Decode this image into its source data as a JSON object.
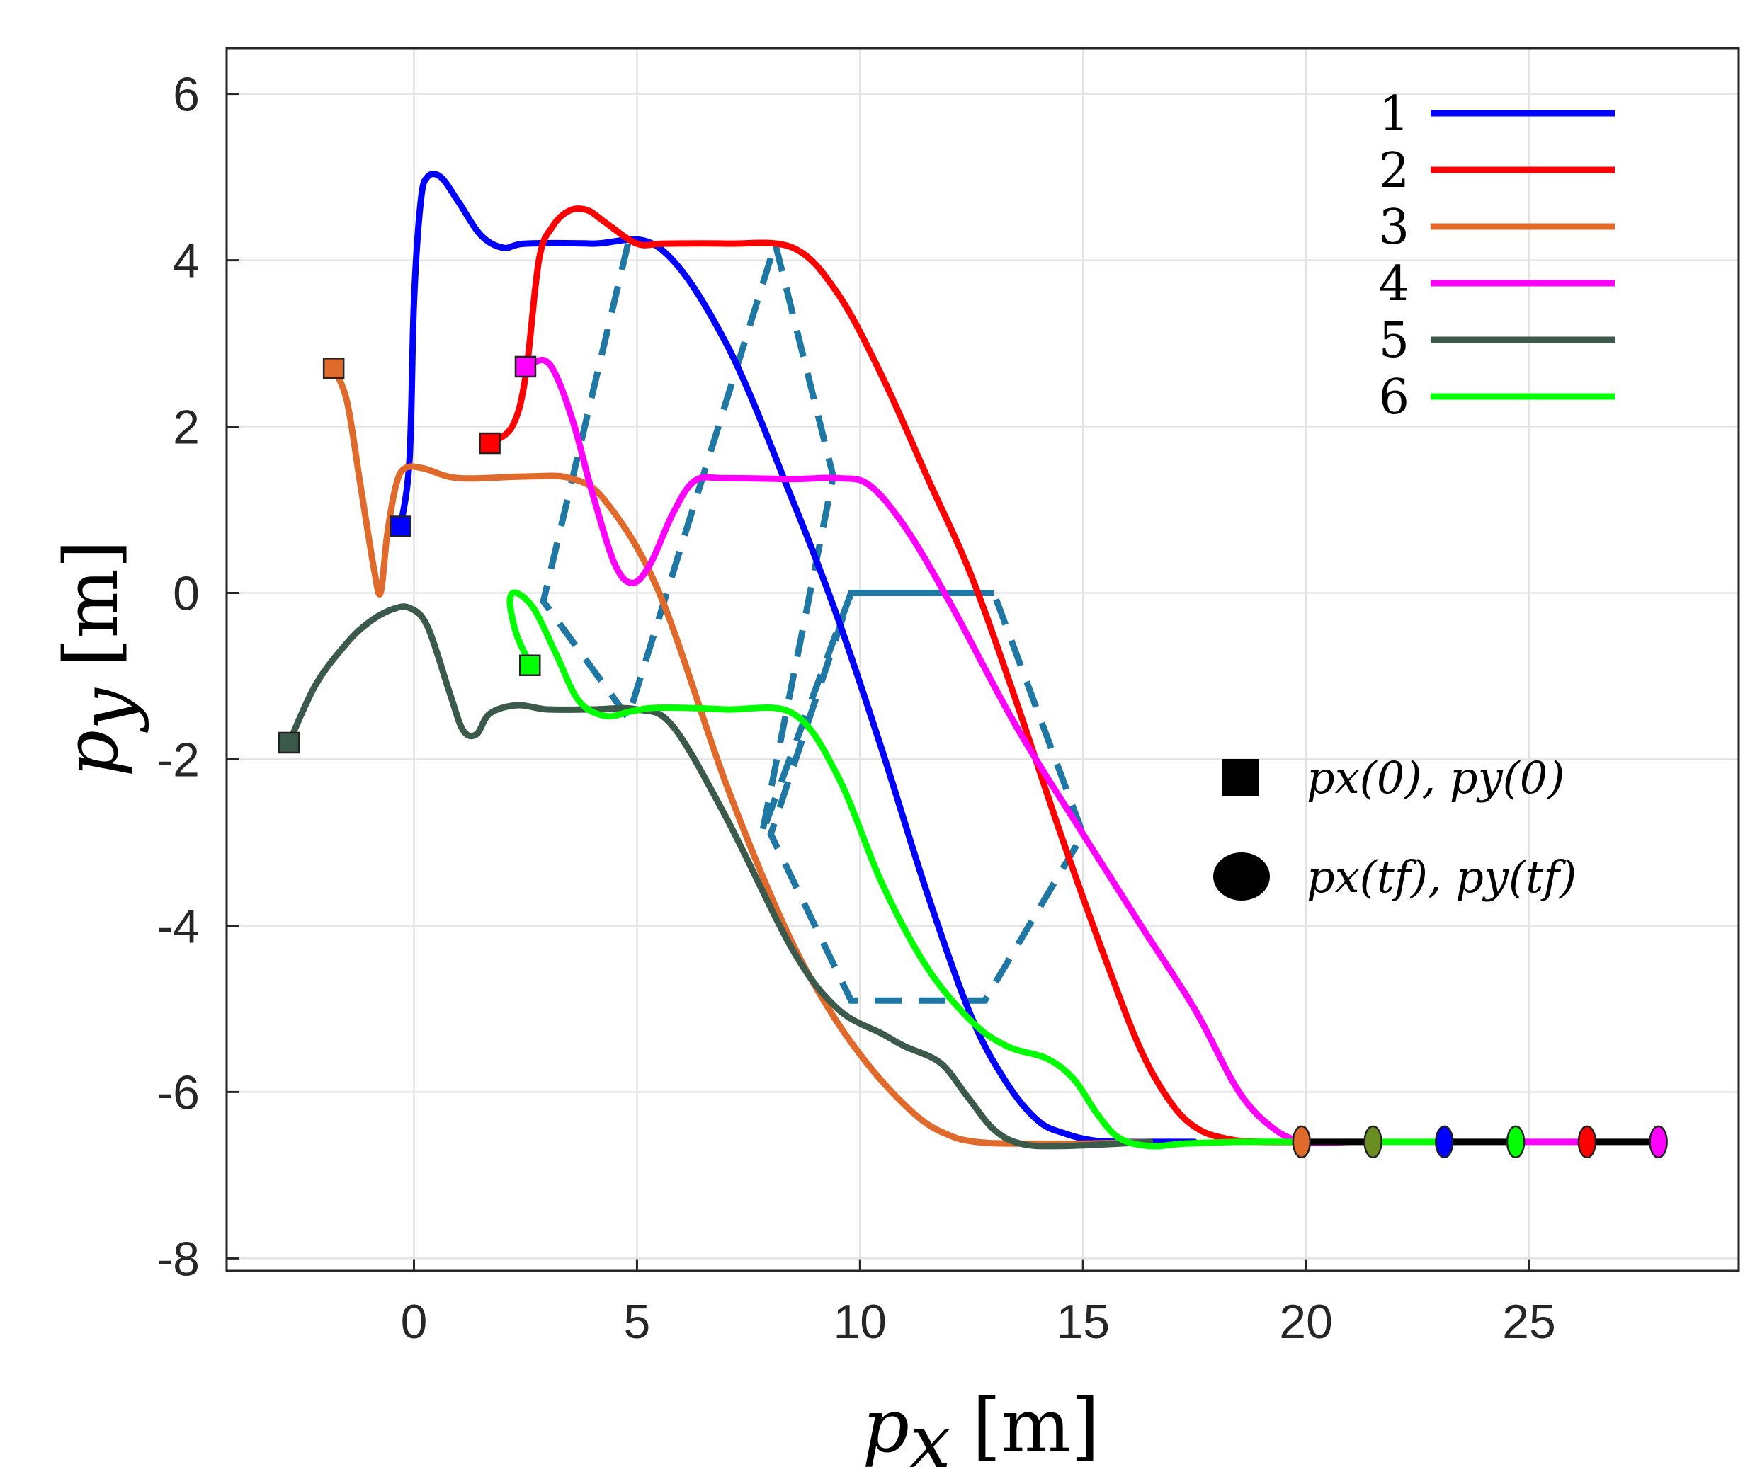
{
  "chart_data": {
    "type": "line",
    "xlabel_var": "p",
    "xlabel_sub": "x",
    "xlabel_unit": "[m]",
    "ylabel_var": "p",
    "ylabel_sub": "y",
    "ylabel_unit": "[m]",
    "xlim": [
      -4.2,
      29.7
    ],
    "ylim": [
      -8.15,
      6.55
    ],
    "x_ticks": [
      0,
      5,
      10,
      15,
      20,
      25
    ],
    "y_ticks": [
      -8,
      -6,
      -4,
      -2,
      0,
      2,
      4,
      6
    ],
    "x_tick_labels": [
      "0",
      "5",
      "10",
      "15",
      "20",
      "25"
    ],
    "y_tick_labels": [
      "-8",
      "-6",
      "-4",
      "-2",
      "0",
      "2",
      "4",
      "6"
    ],
    "grid": true,
    "legend_position": "top-right",
    "marker_legend": [
      {
        "symbol": "square",
        "label": "px(0), py(0)"
      },
      {
        "symbol": "circle",
        "label": "px(tf), py(tf)"
      }
    ],
    "series": [
      {
        "name": "1",
        "color": "#0000ff",
        "x": [
          -0.3,
          -0.1,
          0.0,
          0.15,
          0.3,
          0.6,
          1.0,
          1.5,
          2.0,
          2.5,
          4.0,
          5.5,
          7.0,
          8.5,
          9.5,
          10.5,
          11.5,
          12.5,
          13.3,
          14.0,
          14.6,
          15.2,
          15.8,
          16.5,
          17.5
        ],
        "y": [
          0.8,
          1.6,
          3.5,
          4.7,
          5.0,
          5.0,
          4.7,
          4.3,
          4.15,
          4.2,
          4.2,
          4.15,
          3.0,
          1.1,
          -0.3,
          -1.9,
          -3.6,
          -5.1,
          -5.9,
          -6.35,
          -6.5,
          -6.58,
          -6.6,
          -6.6,
          -6.6
        ]
      },
      {
        "name": "2",
        "color": "#ff0000",
        "x": [
          1.7,
          2.2,
          2.5,
          2.8,
          3.1,
          3.5,
          3.9,
          4.3,
          5.0,
          5.6,
          7.0,
          8.5,
          9.5,
          10.5,
          11.5,
          12.5,
          13.5,
          14.5,
          15.5,
          16.3,
          17.0,
          17.6,
          18.3,
          19.0,
          20.0
        ],
        "y": [
          1.8,
          2.0,
          2.6,
          4.0,
          4.4,
          4.6,
          4.6,
          4.45,
          4.2,
          4.2,
          4.2,
          4.15,
          3.6,
          2.6,
          1.4,
          0.2,
          -1.3,
          -2.9,
          -4.4,
          -5.5,
          -6.15,
          -6.45,
          -6.57,
          -6.6,
          -6.6
        ]
      },
      {
        "name": "3",
        "color": "#e06a2c",
        "x": [
          -1.8,
          -1.5,
          -1.2,
          -0.9,
          -0.75,
          -0.6,
          -0.4,
          -0.2,
          0.2,
          1.0,
          2.5,
          3.5,
          4.3,
          5.5,
          7.0,
          8.3,
          9.3,
          10.3,
          11.3,
          12.0,
          12.6,
          13.5,
          15.0,
          16.5
        ],
        "y": [
          2.7,
          2.3,
          1.3,
          0.3,
          0.0,
          0.7,
          1.3,
          1.5,
          1.5,
          1.38,
          1.4,
          1.38,
          1.1,
          0.0,
          -2.3,
          -4.0,
          -5.0,
          -5.75,
          -6.3,
          -6.52,
          -6.6,
          -6.62,
          -6.62,
          -6.6
        ]
      },
      {
        "name": "4",
        "color": "#ff00ff",
        "x": [
          2.5,
          2.9,
          3.2,
          3.6,
          4.0,
          4.5,
          4.9,
          5.3,
          5.8,
          6.3,
          7.0,
          8.5,
          9.5,
          10.2,
          11.0,
          12.0,
          13.5,
          15.0,
          16.3,
          17.5,
          18.5,
          19.3,
          20.0,
          21.0
        ],
        "y": [
          2.7,
          2.8,
          2.6,
          2.0,
          1.2,
          0.35,
          0.12,
          0.35,
          0.95,
          1.35,
          1.38,
          1.37,
          1.38,
          1.3,
          0.8,
          -0.1,
          -1.6,
          -2.9,
          -4.0,
          -5.0,
          -6.0,
          -6.45,
          -6.6,
          -6.6
        ]
      },
      {
        "name": "5",
        "color": "#3c5a4c",
        "x": [
          -2.8,
          -2.2,
          -1.5,
          -1.0,
          -0.5,
          -0.1,
          0.3,
          0.8,
          1.1,
          1.4,
          1.7,
          2.3,
          3.0,
          4.0,
          5.0,
          5.8,
          7.0,
          8.5,
          9.5,
          10.5,
          11.0,
          11.8,
          12.4,
          13.0,
          13.6,
          14.5,
          16.5
        ],
        "y": [
          -1.8,
          -1.1,
          -0.6,
          -0.35,
          -0.2,
          -0.18,
          -0.4,
          -1.2,
          -1.65,
          -1.7,
          -1.45,
          -1.35,
          -1.4,
          -1.4,
          -1.4,
          -1.6,
          -2.7,
          -4.3,
          -5.0,
          -5.3,
          -5.45,
          -5.65,
          -6.05,
          -6.45,
          -6.62,
          -6.65,
          -6.6
        ]
      },
      {
        "name": "6",
        "color": "#00ff00",
        "x": [
          2.6,
          2.3,
          2.15,
          2.3,
          2.7,
          3.2,
          3.7,
          4.3,
          4.9,
          5.5,
          7.0,
          8.5,
          9.5,
          10.5,
          11.5,
          12.5,
          13.3,
          14.2,
          14.8,
          15.3,
          15.8,
          16.5,
          17.3,
          18.5,
          20.0
        ],
        "y": [
          -0.85,
          -0.5,
          -0.1,
          0.0,
          -0.2,
          -0.75,
          -1.3,
          -1.48,
          -1.42,
          -1.38,
          -1.4,
          -1.45,
          -2.2,
          -3.5,
          -4.5,
          -5.15,
          -5.45,
          -5.6,
          -5.85,
          -6.25,
          -6.55,
          -6.65,
          -6.62,
          -6.6,
          -6.6
        ]
      }
    ],
    "dashed_path": {
      "color": "#1f77a4",
      "x": [
        4.8,
        2.9,
        4.8,
        8.1,
        9.4,
        7.8,
        9.8,
        13.0,
        15.0,
        12.8,
        9.8,
        8.0,
        9.8,
        13.0
      ],
      "y": [
        4.2,
        -0.1,
        -1.5,
        4.2,
        1.4,
        -2.9,
        0.0,
        0.0,
        -2.9,
        -4.9,
        -4.9,
        -2.9,
        0.0,
        0.0
      ]
    },
    "end_line": {
      "x": [
        19.9,
        28.0
      ],
      "y": -6.6,
      "segment_colors": [
        "#000000",
        "#00ff00",
        "#000000",
        "#ff00ff",
        "#000000"
      ]
    },
    "start_points": [
      {
        "name": "1",
        "x": -0.3,
        "y": 0.8,
        "color": "#0000ff"
      },
      {
        "name": "2",
        "x": 1.7,
        "y": 1.8,
        "color": "#ff0000"
      },
      {
        "name": "3",
        "x": -1.8,
        "y": 2.7,
        "color": "#e06a2c"
      },
      {
        "name": "4",
        "x": 2.5,
        "y": 2.72,
        "color": "#ff00ff"
      },
      {
        "name": "5",
        "x": -2.8,
        "y": -1.8,
        "color": "#3c5a4c"
      },
      {
        "name": "6",
        "x": 2.6,
        "y": -0.87,
        "color": "#00ff00"
      }
    ],
    "end_points": [
      {
        "name": "3",
        "x": 19.9,
        "y": -6.6,
        "color": "#e06a2c"
      },
      {
        "name": "5",
        "x": 21.5,
        "y": -6.6,
        "color": "#6b8e23"
      },
      {
        "name": "1",
        "x": 23.1,
        "y": -6.6,
        "color": "#0000ff"
      },
      {
        "name": "6",
        "x": 24.7,
        "y": -6.6,
        "color": "#00ff00"
      },
      {
        "name": "2",
        "x": 26.3,
        "y": -6.6,
        "color": "#ff0000"
      },
      {
        "name": "4",
        "x": 27.9,
        "y": -6.6,
        "color": "#ff00ff"
      }
    ]
  }
}
